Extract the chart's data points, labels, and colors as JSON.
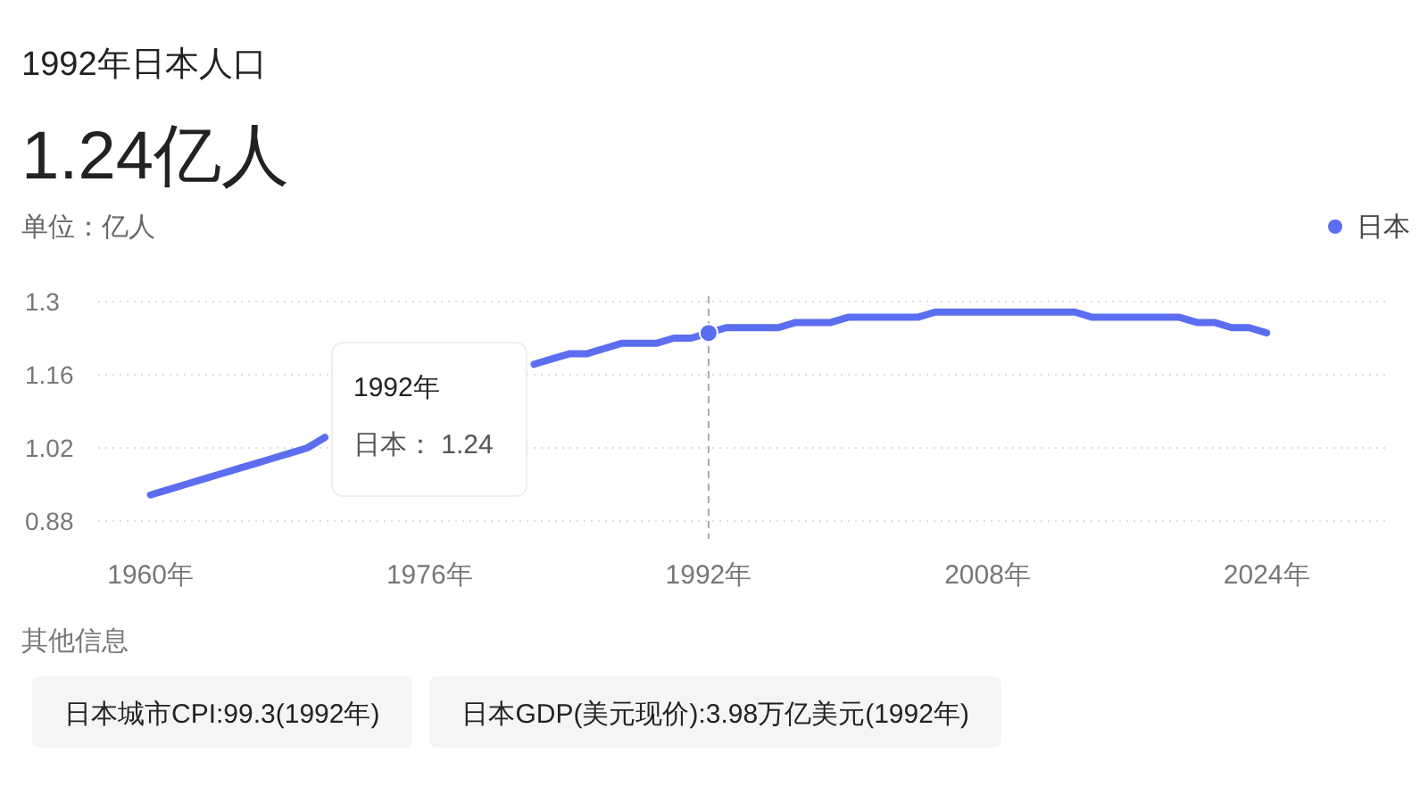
{
  "chart_data": {
    "type": "line",
    "title": "1992年日本人口",
    "subtitle": "1.24亿人",
    "ylabel": "单位：亿人",
    "series": [
      {
        "color": "#5b6ef0",
        "x": [
          1960,
          1961,
          1962,
          1963,
          1964,
          1965,
          1966,
          1967,
          1968,
          1969,
          1970
        ],
        "values": [
          0.93,
          0.94,
          0.95,
          0.96,
          0.97,
          0.98,
          0.99,
          1.0,
          1.01,
          1.02,
          1.04
        ]
      },
      {
        "name": "日本",
        "color": "#5b6ef0",
        "x": [
          1982,
          1983,
          1984,
          1985,
          1986,
          1987,
          1988,
          1989,
          1990,
          1991,
          1992,
          1993,
          1994,
          1995,
          1996,
          1997,
          1998,
          1999,
          2000,
          2001,
          2002,
          2003,
          2004,
          2005,
          2006,
          2007,
          2008,
          2009,
          2010,
          2011,
          2012,
          2013,
          2014,
          2015,
          2016,
          2017,
          2018,
          2019,
          2020,
          2021,
          2022,
          2023,
          2024
        ],
        "values": [
          1.18,
          1.19,
          1.2,
          1.2,
          1.21,
          1.22,
          1.22,
          1.22,
          1.23,
          1.23,
          1.24,
          1.25,
          1.25,
          1.25,
          1.25,
          1.26,
          1.26,
          1.26,
          1.27,
          1.27,
          1.27,
          1.27,
          1.27,
          1.28,
          1.28,
          1.28,
          1.28,
          1.28,
          1.28,
          1.28,
          1.28,
          1.28,
          1.27,
          1.27,
          1.27,
          1.27,
          1.27,
          1.27,
          1.26,
          1.26,
          1.25,
          1.25,
          1.24
        ]
      },
      {
        "type": "scatter",
        "color": "#5b6ef0",
        "x": [
          1992
        ],
        "values": [
          1.24
        ]
      }
    ],
    "xlim": [
      1957,
      2031
    ],
    "xticks": [
      {
        "value": 1960,
        "label": "1960年"
      },
      {
        "value": 1976,
        "label": "1976年"
      },
      {
        "value": 1992,
        "label": "1992年"
      },
      {
        "value": 2008,
        "label": "2008年"
      },
      {
        "value": 2024,
        "label": "2024年"
      }
    ],
    "ylim": [
      0.88,
      1.3
    ],
    "yticks": [
      0.88,
      1.02,
      1.16,
      1.3
    ],
    "grid": "y",
    "legend": "top right",
    "ref_lines": [
      {
        "axis": "x",
        "value": 1992,
        "color": "#aaaaaa",
        "line_style": "dashed"
      }
    ],
    "annotations": [
      "1992年",
      "日本： 1.24",
      "其他信息",
      "日本城市CPI:99.3(1992年)",
      "日本GDP(美元现价):3.98万亿美元(1992年)"
    ]
  }
}
